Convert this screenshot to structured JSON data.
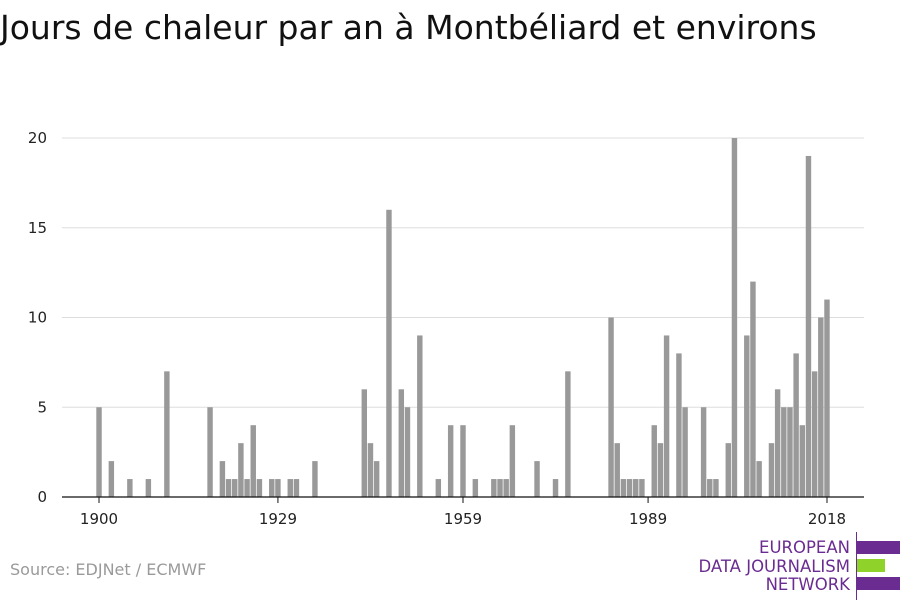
{
  "chart_data": {
    "type": "bar",
    "title": "Jours de chaleur par an à Montbéliard et environs",
    "xlabel": "",
    "ylabel": "",
    "xlim": [
      1894,
      2024
    ],
    "ylim": [
      0,
      20
    ],
    "yticks": [
      0,
      5,
      10,
      15,
      20
    ],
    "xticks": [
      1900,
      1929,
      1959,
      1989,
      2018
    ],
    "grid": true,
    "bar_color": "#999999",
    "data": [
      {
        "x": 1900,
        "y": 5
      },
      {
        "x": 1902,
        "y": 2
      },
      {
        "x": 1905,
        "y": 1
      },
      {
        "x": 1908,
        "y": 1
      },
      {
        "x": 1911,
        "y": 7
      },
      {
        "x": 1918,
        "y": 5
      },
      {
        "x": 1920,
        "y": 2
      },
      {
        "x": 1921,
        "y": 1
      },
      {
        "x": 1922,
        "y": 1
      },
      {
        "x": 1923,
        "y": 3
      },
      {
        "x": 1924,
        "y": 1
      },
      {
        "x": 1925,
        "y": 4
      },
      {
        "x": 1926,
        "y": 1
      },
      {
        "x": 1928,
        "y": 1
      },
      {
        "x": 1929,
        "y": 1
      },
      {
        "x": 1931,
        "y": 1
      },
      {
        "x": 1932,
        "y": 1
      },
      {
        "x": 1935,
        "y": 2
      },
      {
        "x": 1943,
        "y": 6
      },
      {
        "x": 1944,
        "y": 3
      },
      {
        "x": 1945,
        "y": 2
      },
      {
        "x": 1947,
        "y": 16
      },
      {
        "x": 1949,
        "y": 6
      },
      {
        "x": 1950,
        "y": 5
      },
      {
        "x": 1952,
        "y": 9
      },
      {
        "x": 1955,
        "y": 1
      },
      {
        "x": 1957,
        "y": 4
      },
      {
        "x": 1959,
        "y": 4
      },
      {
        "x": 1961,
        "y": 1
      },
      {
        "x": 1964,
        "y": 1
      },
      {
        "x": 1965,
        "y": 1
      },
      {
        "x": 1966,
        "y": 1
      },
      {
        "x": 1967,
        "y": 4
      },
      {
        "x": 1971,
        "y": 2
      },
      {
        "x": 1974,
        "y": 1
      },
      {
        "x": 1976,
        "y": 7
      },
      {
        "x": 1983,
        "y": 10
      },
      {
        "x": 1984,
        "y": 3
      },
      {
        "x": 1985,
        "y": 1
      },
      {
        "x": 1986,
        "y": 1
      },
      {
        "x": 1987,
        "y": 1
      },
      {
        "x": 1988,
        "y": 1
      },
      {
        "x": 1990,
        "y": 4
      },
      {
        "x": 1991,
        "y": 3
      },
      {
        "x": 1992,
        "y": 9
      },
      {
        "x": 1994,
        "y": 8
      },
      {
        "x": 1995,
        "y": 5
      },
      {
        "x": 1998,
        "y": 5
      },
      {
        "x": 1999,
        "y": 1
      },
      {
        "x": 2000,
        "y": 1
      },
      {
        "x": 2002,
        "y": 3
      },
      {
        "x": 2003,
        "y": 20
      },
      {
        "x": 2005,
        "y": 9
      },
      {
        "x": 2006,
        "y": 12
      },
      {
        "x": 2007,
        "y": 2
      },
      {
        "x": 2009,
        "y": 3
      },
      {
        "x": 2010,
        "y": 6
      },
      {
        "x": 2011,
        "y": 5
      },
      {
        "x": 2012,
        "y": 5
      },
      {
        "x": 2013,
        "y": 8
      },
      {
        "x": 2014,
        "y": 4
      },
      {
        "x": 2015,
        "y": 19
      },
      {
        "x": 2016,
        "y": 7
      },
      {
        "x": 2017,
        "y": 10
      },
      {
        "x": 2018,
        "y": 11
      }
    ]
  },
  "footer": {
    "source": "Source: EDJNet / ECMWF",
    "brand_lines": [
      "EUROPEAN",
      "DATA JOURNALISM",
      "NETWORK"
    ],
    "brand_colors": [
      "#6b2c91",
      "#8fd32a",
      "#6b2c91"
    ]
  }
}
